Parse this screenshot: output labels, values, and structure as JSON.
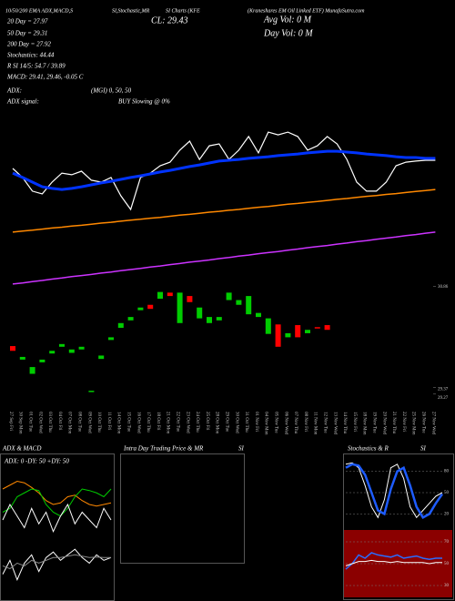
{
  "chart_data": [
    {
      "type": "candlestick",
      "annotations": [
        "10/50/200 EMA ADX,MACD,S",
        "SI,Stochastic,MR",
        "SI Charts (KFE",
        "(Kraneshares EM Oil Linked ETF) MunafaSutra.com",
        "20 Day = 27.97",
        "CL: 29.43",
        "Avg Vol: 0  M",
        "50 Day = 29.31",
        "Day Vol: 0  M",
        "200 Day = 27.92",
        "Stochastics: 44.44",
        "R      SI 14/5: 54.7 / 39.89",
        "MACD: 29.41, 29.46, -0.05  C",
        "ADX:",
        "(MGI) 0, 50, 50",
        "ADX  signal:",
        "BUY Slowing @ 0%"
      ],
      "categories": [
        "27 Sep Fri",
        "30 Sep Mon",
        "01 Oct Tue",
        "02 Oct Wed",
        "03 Oct Thu",
        "04 Oct Fri",
        "07 Oct Mon",
        "08 Oct Tue",
        "09 Oct Wed",
        "10 Oct Thu",
        "11 Oct Fri",
        "14 Oct Mon",
        "15 Oct Tue",
        "16 Oct Wed",
        "17 Oct Thu",
        "18 Oct Fri",
        "21 Oct Mon",
        "22 Oct Tue",
        "23 Oct Wed",
        "24 Oct Thu",
        "25 Oct Fri",
        "28 Oct Mon",
        "29 Oct Tue",
        "30 Oct Wed",
        "31 Oct Thu",
        "01 Nov Fri",
        "04 Nov Mon",
        "05 Nov Tue",
        "06 Nov Wed",
        "07 Nov Thu",
        "08 Nov Fri",
        "11 Nov Mon",
        "12 Nov Tue",
        "13 Nov Wed",
        "14 Nov Thu",
        "15 Nov Fri",
        "18 Nov Mon",
        "19 Nov Tue",
        "20 Nov Wed",
        "21 Nov Thu",
        "22 Nov Fri",
        "25 Nov Mon",
        "26 Nov Tue",
        "27 Nov Wed"
      ],
      "open": [
        29.98,
        29.78,
        29.57,
        29.74,
        29.87,
        29.97,
        29.88,
        29.93,
        29.3,
        29.79,
        30.07,
        30.25,
        30.36,
        30.51,
        30.59,
        30.68,
        30.77,
        30.32,
        30.72,
        30.39,
        30.32,
        30.36,
        30.66,
        30.59,
        30.45,
        30.41,
        30.16,
        30.3,
        30.11,
        30.29,
        30.17,
        30.26,
        30.29,
        null,
        null,
        null,
        null,
        null,
        null,
        null,
        null,
        null,
        null,
        null
      ],
      "close": [
        29.91,
        29.82,
        29.67,
        29.78,
        29.91,
        30.01,
        29.93,
        29.97,
        29.32,
        29.84,
        30.11,
        30.32,
        30.41,
        30.55,
        30.53,
        30.78,
        30.72,
        30.77,
        30.63,
        30.55,
        30.41,
        30.41,
        30.77,
        30.66,
        30.72,
        30.47,
        30.39,
        29.97,
        30.17,
        30.11,
        30.22,
        30.24,
        30.22,
        null,
        null,
        null,
        null,
        null,
        null,
        null,
        null,
        null,
        null,
        null
      ],
      "up_color": "#00cc00",
      "down_color": "#ff0000",
      "ylim": [
        29.2,
        30.95
      ],
      "yticks": [
        30.86,
        29.37,
        29.27
      ],
      "y2lim": [
        25.5,
        31.5
      ],
      "series": [
        {
          "color": "#ffffff",
          "width": 1.2,
          "axis": "y2",
          "values": [
            30.0,
            29.67,
            29.17,
            29.07,
            29.5,
            29.83,
            29.77,
            29.9,
            29.57,
            29.5,
            29.67,
            29.0,
            28.5,
            29.67,
            29.83,
            30.1,
            30.23,
            30.67,
            31.0,
            30.33,
            30.83,
            30.9,
            30.33,
            30.67,
            31.17,
            30.57,
            31.33,
            31.23,
            31.33,
            31.17,
            30.67,
            30.83,
            31.17,
            30.9,
            30.33,
            29.5,
            29.17,
            29.17,
            29.5,
            30.1,
            30.23,
            30.27,
            30.3,
            30.3
          ]
        },
        {
          "color": "#0033ff",
          "width": 3,
          "axis": "y2",
          "values": [
            29.83,
            29.67,
            29.5,
            29.33,
            29.27,
            29.23,
            29.27,
            29.33,
            29.4,
            29.47,
            29.53,
            29.6,
            29.67,
            29.73,
            29.8,
            29.87,
            29.93,
            30.0,
            30.07,
            30.13,
            30.2,
            30.27,
            30.3,
            30.33,
            30.37,
            30.4,
            30.43,
            30.47,
            30.5,
            30.53,
            30.57,
            30.6,
            30.63,
            30.63,
            30.6,
            30.57,
            30.53,
            30.5,
            30.47,
            30.43,
            30.4,
            30.4,
            30.37,
            30.37
          ]
        },
        {
          "color": "#ff8800",
          "width": 1.5,
          "axis": "y2",
          "values": [
            27.67,
            27.71,
            27.74,
            27.78,
            27.82,
            27.85,
            27.89,
            27.92,
            27.96,
            28.0,
            28.03,
            28.07,
            28.11,
            28.14,
            28.18,
            28.21,
            28.25,
            28.29,
            28.32,
            28.36,
            28.4,
            28.43,
            28.47,
            28.5,
            28.54,
            28.58,
            28.61,
            28.65,
            28.69,
            28.72,
            28.76,
            28.79,
            28.83,
            28.87,
            28.9,
            28.94,
            28.98,
            29.01,
            29.05,
            29.08,
            29.12,
            29.16,
            29.19,
            29.23
          ]
        },
        {
          "color": "#cc33ff",
          "width": 1.5,
          "axis": "y2",
          "values": [
            25.77,
            25.81,
            25.86,
            25.9,
            25.95,
            25.99,
            26.04,
            26.08,
            26.12,
            26.17,
            26.21,
            26.26,
            26.3,
            26.34,
            26.39,
            26.43,
            26.48,
            26.52,
            26.57,
            26.61,
            26.65,
            26.7,
            26.74,
            26.79,
            26.83,
            26.88,
            26.92,
            26.96,
            27.01,
            27.05,
            27.1,
            27.14,
            27.18,
            27.23,
            27.27,
            27.32,
            27.36,
            27.41,
            27.45,
            27.49,
            27.54,
            27.58,
            27.63,
            27.67
          ]
        }
      ]
    },
    {
      "type": "line",
      "title": "ADX  & MACD",
      "annotations": [
        "ADX: 0  -DY: 50  +DY: 50"
      ],
      "ylim": [
        0,
        100
      ],
      "series": [
        {
          "color": "#ff8800",
          "width": 1,
          "values": [
            60,
            65,
            70,
            68,
            62,
            55,
            45,
            40,
            42,
            50,
            52,
            45,
            40,
            38,
            40,
            42
          ]
        },
        {
          "color": "#00cc00",
          "width": 1,
          "values": [
            30,
            35,
            50,
            55,
            60,
            58,
            40,
            30,
            25,
            35,
            50,
            60,
            58,
            55,
            50,
            60
          ]
        },
        {
          "color": "#ffffff",
          "width": 1,
          "values": [
            20,
            40,
            25,
            10,
            35,
            15,
            30,
            5,
            25,
            40,
            15,
            30,
            20,
            10,
            35,
            20
          ]
        }
      ]
    },
    {
      "type": "line",
      "ylim": [
        -1,
        1
      ],
      "series": [
        {
          "color": "#ffffff",
          "width": 1,
          "values": [
            -0.2,
            0.3,
            -0.4,
            0.2,
            0.5,
            -0.1,
            0.4,
            0.6,
            0.3,
            0.5,
            0.7,
            0.4,
            0.2,
            0.5,
            0.3,
            0.4
          ]
        },
        {
          "color": "#888888",
          "width": 1,
          "values": [
            0.1,
            0.0,
            0.2,
            0.1,
            0.3,
            0.2,
            0.3,
            0.4,
            0.4,
            0.45,
            0.5,
            0.45,
            0.4,
            0.42,
            0.4,
            0.4
          ]
        }
      ]
    },
    {
      "type": "line",
      "title": "Intra Day Trading Price  & MR",
      "subtitle": "SI",
      "series": []
    },
    {
      "type": "line",
      "title": "Stochastics  & R",
      "subtitle": "SI",
      "ylim": [
        0,
        100
      ],
      "yticks": [
        80,
        50,
        20
      ],
      "grid": true,
      "series": [
        {
          "color": "#ffffff",
          "width": 1,
          "values": [
            90,
            92,
            85,
            60,
            30,
            15,
            40,
            85,
            90,
            70,
            30,
            15,
            25,
            35,
            45,
            50
          ]
        },
        {
          "color": "#1e5cff",
          "width": 2.5,
          "values": [
            85,
            90,
            88,
            75,
            50,
            25,
            20,
            55,
            80,
            85,
            60,
            30,
            15,
            20,
            35,
            48
          ]
        }
      ]
    },
    {
      "type": "line",
      "ylim": [
        20,
        80
      ],
      "yticks": [
        70,
        50,
        30
      ],
      "grid": true,
      "background": "#8b0000",
      "series": [
        {
          "color": "#2a6cff",
          "width": 1.5,
          "values": [
            45,
            50,
            58,
            55,
            60,
            58,
            57,
            56,
            58,
            55,
            56,
            57,
            55,
            54,
            55,
            55
          ]
        },
        {
          "color": "#ffffff",
          "width": 1,
          "values": [
            48,
            50,
            52,
            52,
            53,
            52,
            52,
            51,
            52,
            51,
            51,
            51,
            51,
            50,
            51,
            51
          ]
        }
      ]
    }
  ]
}
